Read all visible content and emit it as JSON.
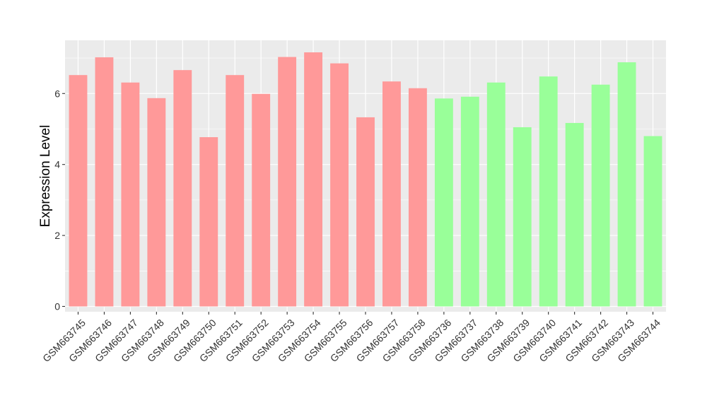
{
  "chart_data": {
    "type": "bar",
    "title": "",
    "xlabel": "",
    "ylabel": "Expression Level",
    "ylim": [
      -0.15,
      7.5
    ],
    "yticks": [
      0,
      2,
      4,
      6
    ],
    "grid": true,
    "legend": "none",
    "colors": {
      "group1": "#ff9999",
      "group2": "#99ff99",
      "panel": "#ebebeb",
      "grid": "#ffffff"
    },
    "categories": [
      "GSM663745",
      "GSM663746",
      "GSM663747",
      "GSM663748",
      "GSM663749",
      "GSM663750",
      "GSM663751",
      "GSM663752",
      "GSM663753",
      "GSM663754",
      "GSM663755",
      "GSM663756",
      "GSM663757",
      "GSM663758",
      "GSM663736",
      "GSM663737",
      "GSM663738",
      "GSM663739",
      "GSM663740",
      "GSM663741",
      "GSM663742",
      "GSM663743",
      "GSM663744"
    ],
    "values": [
      6.52,
      7.02,
      6.31,
      5.87,
      6.66,
      4.77,
      6.52,
      5.99,
      7.03,
      7.16,
      6.85,
      5.33,
      6.34,
      6.15,
      5.86,
      5.91,
      6.31,
      5.05,
      6.48,
      5.17,
      6.25,
      6.88,
      4.8
    ],
    "groups": [
      1,
      1,
      1,
      1,
      1,
      1,
      1,
      1,
      1,
      1,
      1,
      1,
      1,
      1,
      2,
      2,
      2,
      2,
      2,
      2,
      2,
      2,
      2
    ]
  }
}
